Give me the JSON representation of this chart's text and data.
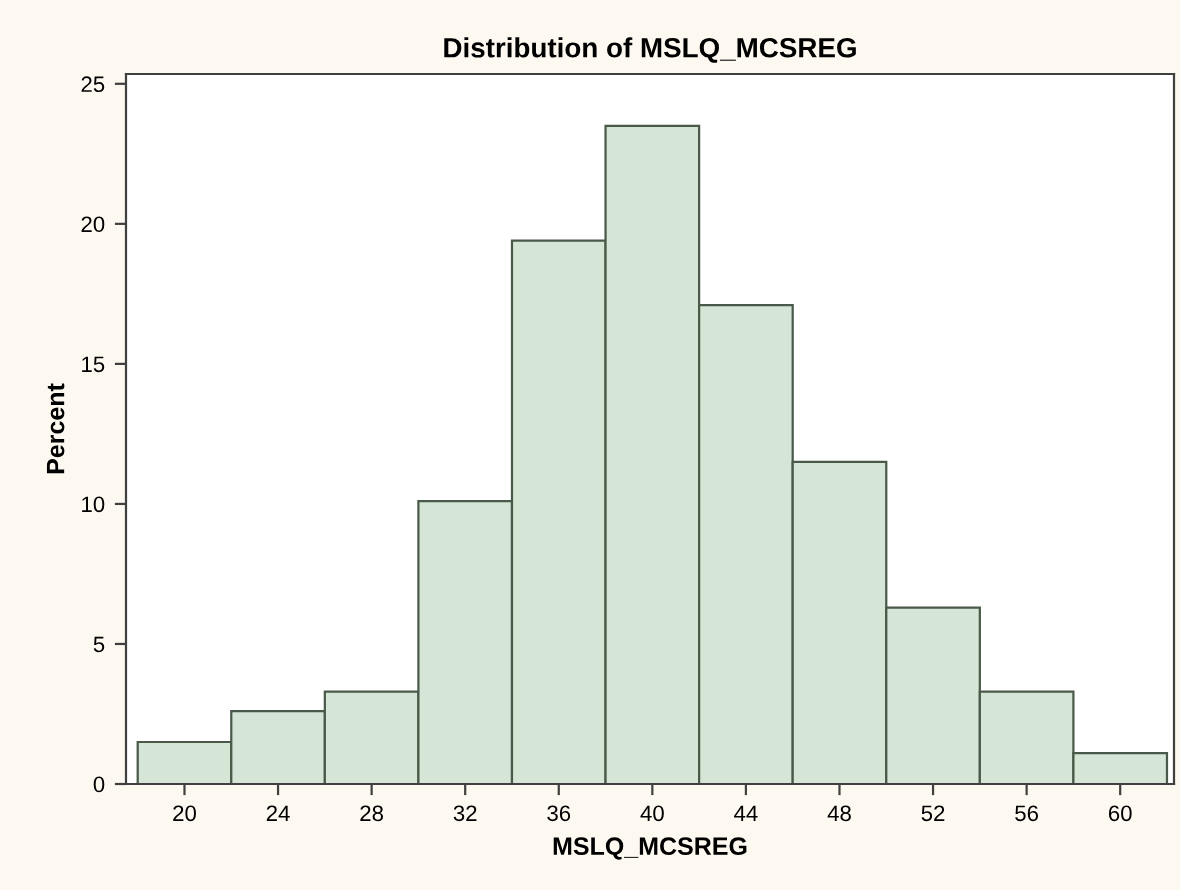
{
  "chart_data": {
    "type": "histogram",
    "title": "Distribution of MSLQ_MCSREG",
    "xlabel": "MSLQ_MCSREG",
    "ylabel": "Percent",
    "bins": [
      18,
      22,
      26,
      30,
      34,
      38,
      42,
      46,
      50,
      54,
      58,
      62
    ],
    "values": [
      1.5,
      2.6,
      3.3,
      10.1,
      19.4,
      23.5,
      17.1,
      11.5,
      6.3,
      3.3,
      1.1
    ],
    "color": "#d6e6d6",
    "xlim": [
      17.5,
      62.3
    ],
    "xticks": [
      20,
      24,
      28,
      32,
      36,
      40,
      44,
      48,
      52,
      56,
      60
    ],
    "ylim": [
      0,
      25.35
    ],
    "yticks": [
      0,
      5,
      10,
      15,
      20,
      25
    ],
    "grid": false
  }
}
